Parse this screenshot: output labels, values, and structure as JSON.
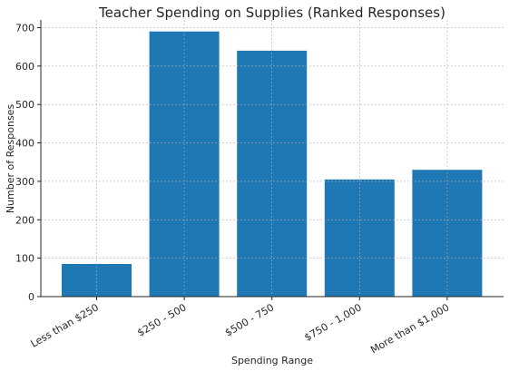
{
  "chart_data": {
    "type": "bar",
    "title": "Teacher Spending on Supplies (Ranked Responses)",
    "xlabel": "Spending Range",
    "ylabel": "Number of Responses",
    "categories": [
      "Less than $250",
      "$250 - 500",
      "$500 - 750",
      "$750 - 1,000",
      "More than $1,000"
    ],
    "values": [
      85,
      690,
      640,
      305,
      330
    ],
    "ylim": [
      0,
      720
    ],
    "yticks": [
      0,
      100,
      200,
      300,
      400,
      500,
      600,
      700
    ],
    "grid": true,
    "bar_color": "#1f77b4"
  }
}
